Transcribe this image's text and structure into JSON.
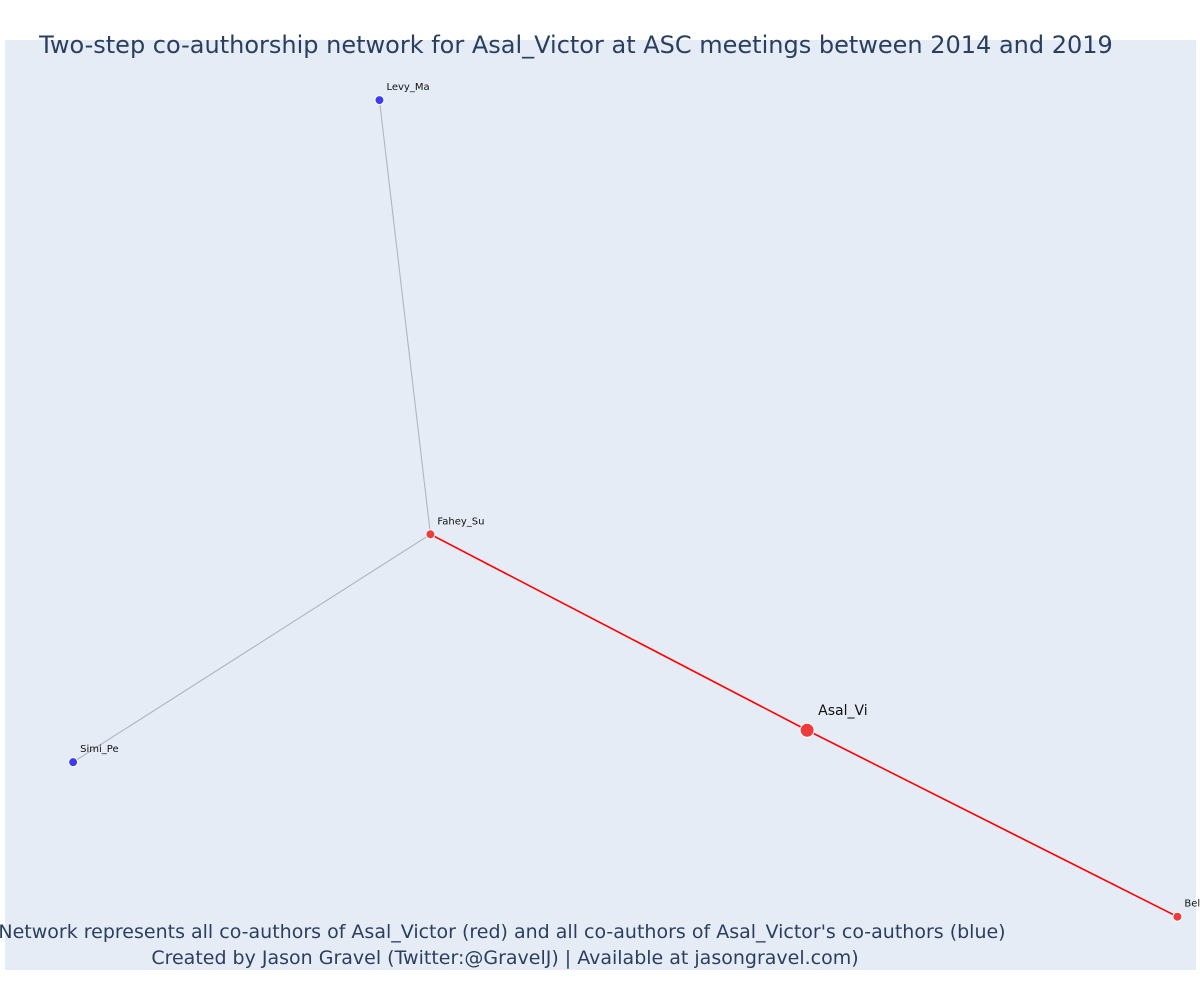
{
  "title": "Two-step co-authorship network for Asal_Victor at ASC meetings between 2014 and 2019",
  "caption_line1": "Network represents all co-authors of Asal_Victor (red) and all co-authors of Asal_Victor's co-authors (blue)",
  "caption_line2": "Created by Jason Gravel (Twitter:@GravelJ) | Available at jasongravel.com)",
  "colors": {
    "plot_bg": "#e5ecf6",
    "first_degree": "#ef3b3b",
    "second_degree": "#3b3bef",
    "first_degree_edge": "#ff0000",
    "second_degree_edge": "#b4b4bc",
    "text": "#2a3f5f"
  },
  "chart_data": {
    "type": "network",
    "nodes": [
      {
        "id": "Asal_Vi",
        "label": "Asal_Vi",
        "group": "ego",
        "x": 0.6735,
        "y": 0.2578
      },
      {
        "id": "Fahey_Su",
        "label": "Fahey_Su",
        "group": "first_degree",
        "x": 0.3572,
        "y": 0.4685
      },
      {
        "id": "Bellandi_Ro",
        "label": "Bellandi_Ro",
        "group": "first_degree",
        "x": 0.9844,
        "y": 0.0573
      },
      {
        "id": "Levy_Ma",
        "label": "Levy_Ma",
        "group": "second_degree",
        "x": 0.3144,
        "y": 0.9354
      },
      {
        "id": "Simi_Pe",
        "label": "Simi_Pe",
        "group": "second_degree",
        "x": 0.0572,
        "y": 0.2235
      }
    ],
    "edges": [
      {
        "source": "Asal_Vi",
        "target": "Fahey_Su",
        "group": "first_degree"
      },
      {
        "source": "Asal_Vi",
        "target": "Bellandi_Ro",
        "group": "first_degree"
      },
      {
        "source": "Fahey_Su",
        "target": "Levy_Ma",
        "group": "second_degree"
      },
      {
        "source": "Fahey_Su",
        "target": "Simi_Pe",
        "group": "second_degree"
      }
    ]
  }
}
